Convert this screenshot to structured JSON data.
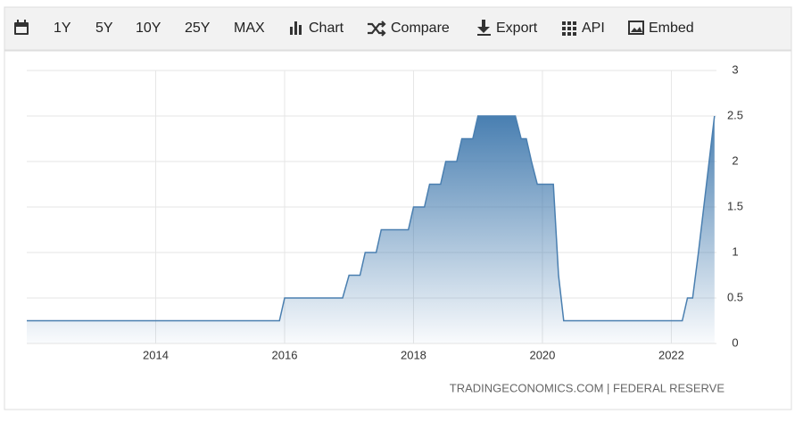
{
  "toolbar": {
    "buttons": [
      "1Y",
      "5Y",
      "10Y",
      "25Y",
      "MAX",
      "Chart",
      "Compare",
      "Export",
      "API",
      "Embed"
    ]
  },
  "chart_data": {
    "type": "line",
    "x": [
      2012.0,
      2015.92,
      2016.0,
      2016.9,
      2017.0,
      2017.17,
      2017.25,
      2017.42,
      2017.5,
      2017.92,
      2018.0,
      2018.17,
      2018.25,
      2018.42,
      2018.5,
      2018.67,
      2018.75,
      2018.92,
      2019.0,
      2019.58,
      2019.67,
      2019.75,
      2019.83,
      2019.92,
      2020.17,
      2020.25,
      2020.33,
      2022.17,
      2022.25,
      2022.33,
      2022.42,
      2022.67
    ],
    "y": [
      0.25,
      0.25,
      0.5,
      0.5,
      0.75,
      0.75,
      1,
      1,
      1.25,
      1.25,
      1.5,
      1.5,
      1.75,
      1.75,
      2,
      2,
      2.25,
      2.25,
      2.5,
      2.5,
      2.25,
      2.25,
      2,
      1.75,
      1.75,
      0.75,
      0.25,
      0.25,
      0.5,
      0.5,
      1,
      2.5
    ],
    "color": "#4a7fb0",
    "xlim": [
      2012.0,
      2022.7
    ],
    "xticks": [
      2014,
      2016,
      2018,
      2020,
      2022
    ],
    "ylim": [
      0,
      3
    ],
    "yticks": [
      0,
      0.5,
      1,
      1.5,
      2,
      2.5,
      3
    ],
    "grid": true,
    "source": "TRADINGECONOMICS.COM | FEDERAL RESERVE"
  }
}
